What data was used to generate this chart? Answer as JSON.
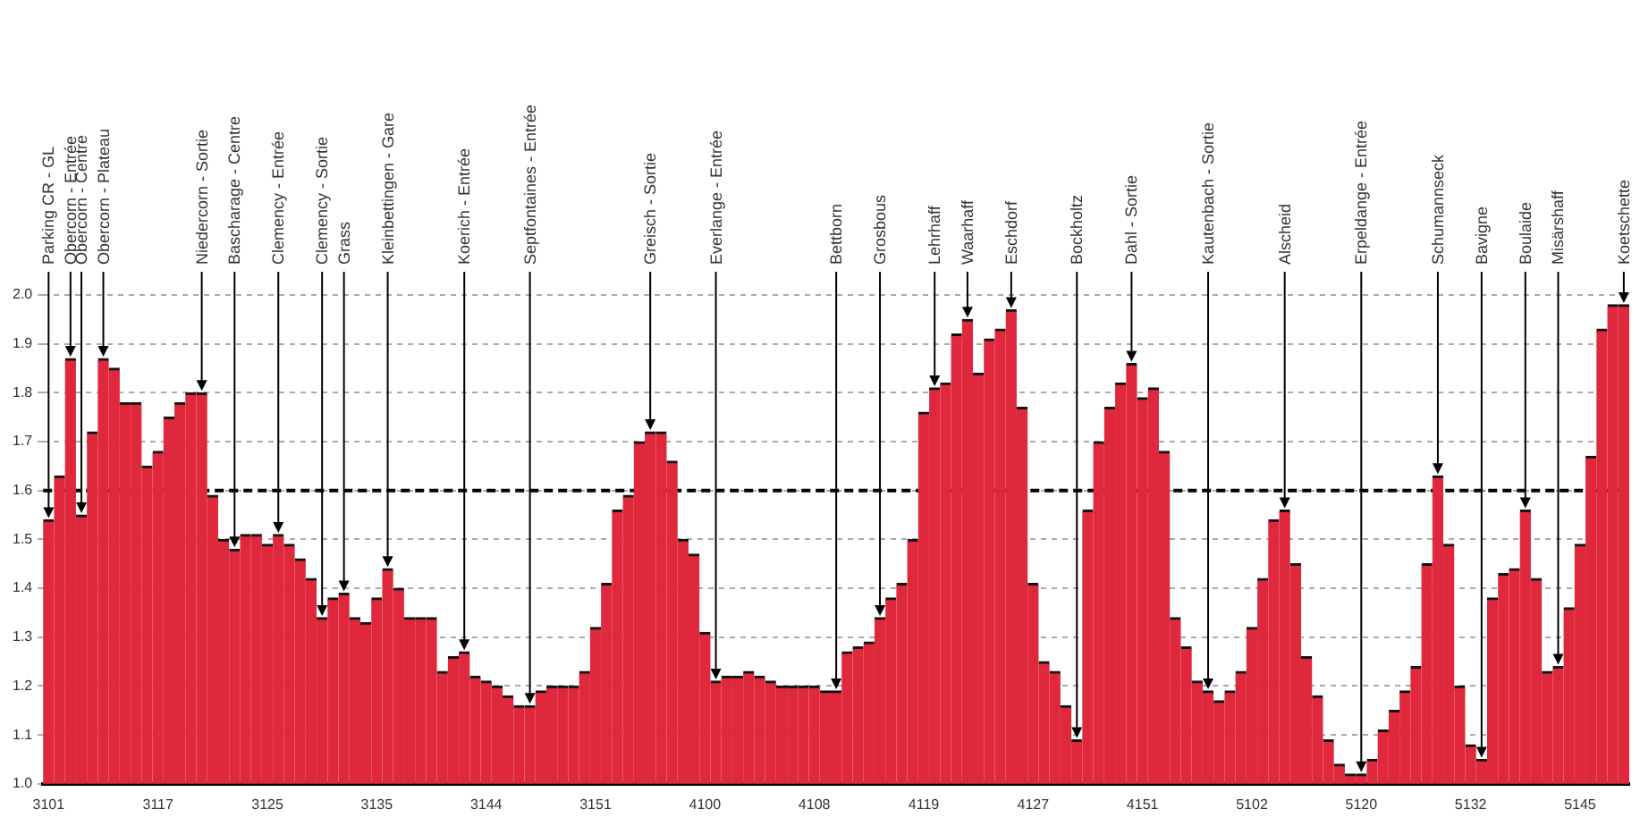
{
  "chart_data": {
    "type": "bar",
    "color": "#e0283c",
    "grid": "y",
    "categories": [
      "3101",
      null,
      null,
      null,
      null,
      null,
      null,
      null,
      null,
      null,
      "3117",
      null,
      null,
      null,
      null,
      null,
      null,
      null,
      null,
      null,
      "3125",
      null,
      null,
      null,
      null,
      null,
      null,
      null,
      null,
      null,
      "3135",
      null,
      null,
      null,
      null,
      null,
      null,
      null,
      null,
      null,
      "3144",
      null,
      null,
      null,
      null,
      null,
      null,
      null,
      null,
      null,
      "3151",
      null,
      null,
      null,
      null,
      null,
      null,
      null,
      null,
      null,
      "4100",
      null,
      null,
      null,
      null,
      null,
      null,
      null,
      null,
      null,
      "4108",
      null,
      null,
      null,
      null,
      null,
      null,
      null,
      null,
      null,
      "4119",
      null,
      null,
      null,
      null,
      null,
      null,
      null,
      null,
      null,
      "4127",
      null,
      null,
      null,
      null,
      null,
      null,
      null,
      null,
      null,
      "4151",
      null,
      null,
      null,
      null,
      null,
      null,
      null,
      null,
      null,
      "5102",
      null,
      null,
      null,
      null,
      null,
      null,
      null,
      null,
      null,
      "5120",
      null,
      null,
      null,
      null,
      null,
      null,
      null,
      null,
      null,
      "5132",
      null,
      null,
      null,
      null,
      null,
      null,
      null,
      null,
      null,
      "5145",
      null,
      null,
      null,
      null
    ],
    "values": [
      1.54,
      1.63,
      1.87,
      1.55,
      1.72,
      1.87,
      1.85,
      1.78,
      1.78,
      1.65,
      1.68,
      1.75,
      1.78,
      1.8,
      1.8,
      1.59,
      1.5,
      1.48,
      1.51,
      1.51,
      1.49,
      1.51,
      1.49,
      1.46,
      1.42,
      1.34,
      1.38,
      1.39,
      1.34,
      1.33,
      1.38,
      1.44,
      1.4,
      1.34,
      1.34,
      1.34,
      1.23,
      1.26,
      1.27,
      1.22,
      1.21,
      1.2,
      1.18,
      1.16,
      1.16,
      1.19,
      1.2,
      1.2,
      1.2,
      1.23,
      1.32,
      1.41,
      1.56,
      1.59,
      1.7,
      1.72,
      1.72,
      1.66,
      1.5,
      1.47,
      1.31,
      1.21,
      1.22,
      1.22,
      1.23,
      1.22,
      1.21,
      1.2,
      1.2,
      1.2,
      1.2,
      1.19,
      1.19,
      1.27,
      1.28,
      1.29,
      1.34,
      1.38,
      1.41,
      1.5,
      1.76,
      1.81,
      1.82,
      1.92,
      1.95,
      1.84,
      1.91,
      1.93,
      1.97,
      1.77,
      1.41,
      1.25,
      1.23,
      1.16,
      1.09,
      1.56,
      1.7,
      1.77,
      1.82,
      1.86,
      1.79,
      1.81,
      1.68,
      1.34,
      1.28,
      1.21,
      1.19,
      1.17,
      1.19,
      1.23,
      1.32,
      1.42,
      1.54,
      1.56,
      1.45,
      1.26,
      1.18,
      1.09,
      1.04,
      1.02,
      1.02,
      1.05,
      1.11,
      1.15,
      1.19,
      1.24,
      1.45,
      1.63,
      1.49,
      1.2,
      1.08,
      1.05,
      1.38,
      1.43,
      1.44,
      1.56,
      1.42,
      1.23,
      1.24,
      1.36,
      1.49,
      1.67,
      1.93,
      1.98,
      1.98
    ],
    "ylim": [
      1,
      2
    ],
    "yticks": [
      {
        "value": 1,
        "label": "1.0"
      },
      1.1,
      1.2,
      1.3,
      1.4,
      1.5,
      1.6,
      1.7,
      1.8,
      1.9,
      {
        "value": 2,
        "label": "2.0"
      }
    ],
    "ref_lines": [
      {
        "axis": "y",
        "value": 1.6,
        "color": "#000000",
        "line_style": "dashed"
      }
    ],
    "annotations": [
      {
        "text": "Parking CR - GL",
        "y": 1.54
      },
      {
        "text": "Obercorn - Entrée",
        "y": 1.87
      },
      {
        "text": "Obercorn - Centre",
        "y": 1.55
      },
      {
        "text": "Obercorn - Plateau",
        "y": 1.87
      },
      {
        "text": "Niedercorn - Sortie",
        "y": 1.8
      },
      {
        "text": "Bascharage - Centre",
        "y": 1.48
      },
      {
        "text": "Clemency - Entrée",
        "y": 1.51
      },
      {
        "text": "Clemency - Sortie",
        "y": 1.34
      },
      {
        "text": "Grass",
        "y": 1.39
      },
      {
        "text": "Kleinbettingen - Gare",
        "y": 1.44
      },
      "Koerich - Entrée",
      "Septfontaines - Entrée",
      {
        "text": "Greisch - Sortie",
        "y": 1.72
      },
      "Everlange - Entrée",
      "Bettborn",
      {
        "text": "Grosbous",
        "y": 1.34
      },
      {
        "text": "Lehrhaff",
        "y": 1.81
      },
      {
        "text": "Waarhaff",
        "y": 1.95
      },
      {
        "text": "Eschdorf",
        "y": 1.97
      },
      "Bockholtz",
      {
        "text": "Dahl - Sortie",
        "y": 1.86
      },
      "Kautenbach - Sortie",
      {
        "text": "Alscheid",
        "y": 1.56
      },
      "Erpeldange - Entrée",
      {
        "text": "Schumannseck",
        "y": 1.63
      },
      "Bavigne",
      {
        "text": "Boulaide",
        "y": 1.56
      },
      "Misärshaff",
      {
        "text": "Koetschette",
        "y": 1.98
      }
    ]
  }
}
